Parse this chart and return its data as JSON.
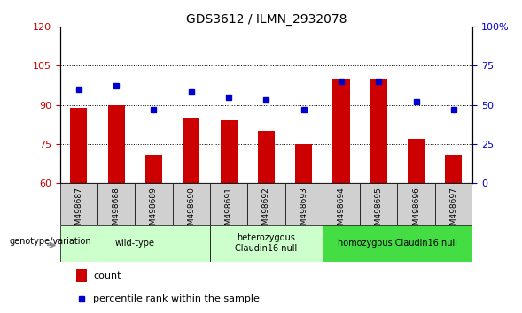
{
  "title": "GDS3612 / ILMN_2932078",
  "samples": [
    "GSM498687",
    "GSM498688",
    "GSM498689",
    "GSM498690",
    "GSM498691",
    "GSM498692",
    "GSM498693",
    "GSM498694",
    "GSM498695",
    "GSM498696",
    "GSM498697"
  ],
  "counts": [
    89,
    90,
    71,
    85,
    84,
    80,
    75,
    100,
    100,
    77,
    71
  ],
  "percentiles": [
    60,
    62,
    47,
    58,
    55,
    53,
    47,
    65,
    65,
    52,
    47
  ],
  "ylim_left": [
    60,
    120
  ],
  "ylim_right": [
    0,
    100
  ],
  "yticks_left": [
    60,
    75,
    90,
    105,
    120
  ],
  "yticks_right": [
    0,
    25,
    50,
    75,
    100
  ],
  "grid_lines": [
    75,
    90,
    105
  ],
  "bar_color": "#cc0000",
  "dot_color": "#0000cc",
  "bar_width": 0.45,
  "groups": [
    {
      "label": "wild-type",
      "start": 0,
      "end": 3,
      "color": "#ccffcc"
    },
    {
      "label": "heterozygous\nClaudin16 null",
      "start": 4,
      "end": 6,
      "color": "#ccffcc"
    },
    {
      "label": "homozygous Claudin16 null",
      "start": 7,
      "end": 10,
      "color": "#44dd44"
    }
  ],
  "group_label": "genotype/variation",
  "legend_count": "count",
  "legend_percentile": "percentile rank within the sample",
  "tick_label_color_left": "#cc0000",
  "tick_label_color_right": "#0000cc",
  "sample_box_color": "#d0d0d0",
  "plot_bg": "#ffffff"
}
